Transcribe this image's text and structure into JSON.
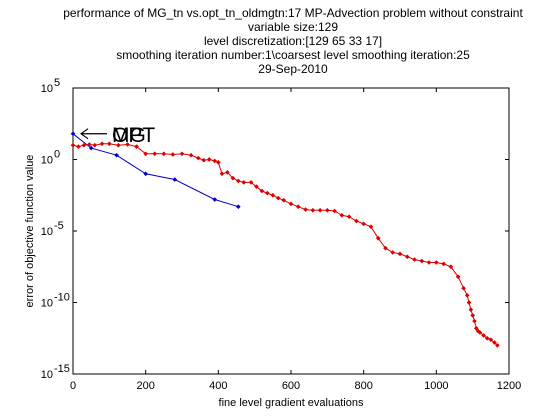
{
  "chart_data": {
    "type": "line",
    "title_lines": [
      "performance of MG_tn vs.opt_tn_oldmgtn:17 MP-Advection problem without constraint",
      "variable size:129",
      "level discretization:[129 65 33 17]",
      "smoothing iteration number:1\\coarsest level smoothing iteration:25",
      "29-Sep-2010"
    ],
    "xlabel": "fine level gradient evaluations",
    "ylabel": "error of objective function value",
    "xlim": [
      0,
      1200
    ],
    "ylim_log10": [
      -15,
      5
    ],
    "yscale": "log",
    "x_ticks": [
      0,
      200,
      400,
      600,
      800,
      1000,
      1200
    ],
    "x_tick_labels": [
      "0",
      "200",
      "400",
      "600",
      "800",
      "1000",
      "1200"
    ],
    "y_ticks_exp": [
      5,
      0,
      -5,
      -10,
      -15
    ],
    "y_tick_base": "10",
    "y_tick_exponents": [
      "5",
      "0",
      "-5",
      "-10",
      "-15"
    ],
    "annotations": [
      {
        "text": "OPT",
        "x": 0,
        "log10y": 1.8
      },
      {
        "text": "MG",
        "x": 0,
        "log10y": 1.8
      }
    ],
    "series": [
      {
        "color": "#0000cc",
        "x": [
          0,
          50,
          120,
          200,
          280,
          390,
          455
        ],
        "log10y": [
          1.8,
          0.8,
          0.3,
          -1.0,
          -1.4,
          -2.8,
          -3.3
        ]
      },
      {
        "color": "#dd0000",
        "x": [
          0,
          15,
          30,
          45,
          60,
          80,
          100,
          125,
          150,
          175,
          200,
          225,
          250,
          275,
          300,
          325,
          345,
          360,
          375,
          390,
          400,
          410,
          425,
          440,
          455,
          470,
          490,
          505,
          520,
          535,
          550,
          565,
          580,
          600,
          620,
          640,
          660,
          680,
          700,
          720,
          740,
          760,
          780,
          800,
          820,
          840,
          860,
          880,
          900,
          920,
          940,
          960,
          980,
          1000,
          1020,
          1040,
          1060,
          1075,
          1085,
          1090,
          1095,
          1100,
          1105,
          1110,
          1115,
          1120,
          1130,
          1140,
          1150,
          1160,
          1168
        ],
        "log10y": [
          1.0,
          0.9,
          1.0,
          1.05,
          1.0,
          1.1,
          1.1,
          1.0,
          1.05,
          0.9,
          0.4,
          0.4,
          0.4,
          0.35,
          0.4,
          0.3,
          0.1,
          -0.05,
          0.0,
          -0.1,
          -0.2,
          -1.0,
          -0.9,
          -1.3,
          -1.5,
          -1.6,
          -1.6,
          -1.9,
          -2.2,
          -2.35,
          -2.5,
          -2.7,
          -2.85,
          -3.1,
          -3.3,
          -3.5,
          -3.55,
          -3.55,
          -3.55,
          -3.6,
          -3.9,
          -4.0,
          -4.3,
          -4.5,
          -4.7,
          -5.5,
          -6.2,
          -6.5,
          -6.6,
          -6.8,
          -7.0,
          -7.1,
          -7.2,
          -7.2,
          -7.3,
          -7.5,
          -8.2,
          -9.0,
          -9.5,
          -10.0,
          -10.5,
          -10.9,
          -11.3,
          -11.8,
          -12.0,
          -12.1,
          -12.3,
          -12.5,
          -12.6,
          -12.8,
          -13.0
        ]
      }
    ]
  }
}
